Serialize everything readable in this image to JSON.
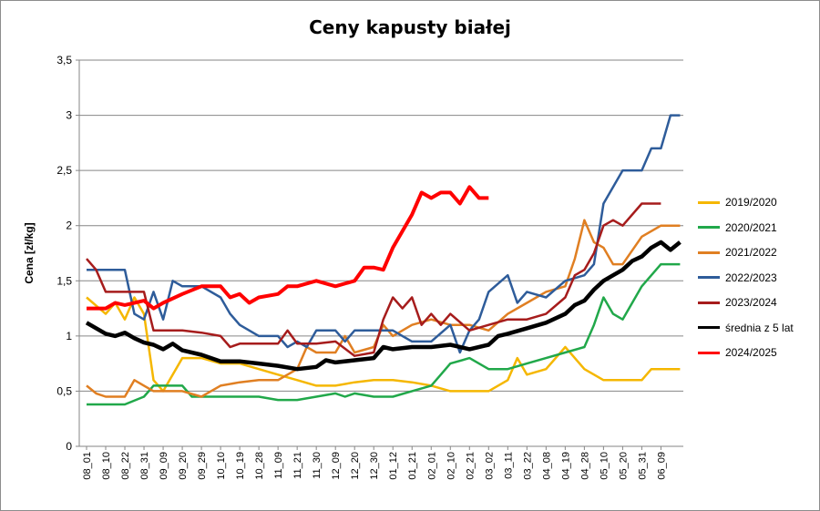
{
  "chart_data": {
    "type": "line",
    "title": "Ceny kapusty białej",
    "xlabel": "",
    "ylabel": "Cena [zł/kg]",
    "ylim": [
      0,
      3.5
    ],
    "yticks": [
      "0",
      "0,5",
      "1",
      "1,5",
      "2",
      "2,5",
      "3",
      "3,5"
    ],
    "grid": true,
    "legend_position": "right",
    "categories": [
      "08_01",
      "08_10",
      "08_22",
      "08_31",
      "09_09",
      "09_20",
      "09_29",
      "10_10",
      "10_19",
      "10_28",
      "11_09",
      "11_21",
      "11_30",
      "12_09",
      "12_20",
      "12_30",
      "01_12",
      "01_21",
      "02_01",
      "02_10",
      "02_21",
      "03_02",
      "03_11",
      "03_22",
      "04_08",
      "04_19",
      "04_28",
      "05_10",
      "05_20",
      "05_31",
      "06_09"
    ],
    "series": [
      {
        "name": "2019/2020",
        "color": "#F5B700",
        "points": [
          [
            0,
            1.35
          ],
          [
            1,
            1.2
          ],
          [
            1.5,
            1.3
          ],
          [
            2,
            1.15
          ],
          [
            2.5,
            1.35
          ],
          [
            3,
            1.2
          ],
          [
            3.5,
            0.6
          ],
          [
            4,
            0.5
          ],
          [
            5,
            0.8
          ],
          [
            6,
            0.8
          ],
          [
            7,
            0.75
          ],
          [
            8,
            0.75
          ],
          [
            9,
            0.7
          ],
          [
            10,
            0.65
          ],
          [
            11,
            0.6
          ],
          [
            12,
            0.55
          ],
          [
            13,
            0.55
          ],
          [
            14,
            0.58
          ],
          [
            15,
            0.6
          ],
          [
            16,
            0.6
          ],
          [
            17,
            0.58
          ],
          [
            18,
            0.55
          ],
          [
            19,
            0.5
          ],
          [
            20,
            0.5
          ],
          [
            21,
            0.5
          ],
          [
            22,
            0.6
          ],
          [
            22.5,
            0.8
          ],
          [
            23,
            0.65
          ],
          [
            24,
            0.7
          ],
          [
            25,
            0.9
          ],
          [
            25.5,
            0.8
          ],
          [
            26,
            0.7
          ],
          [
            27,
            0.6
          ],
          [
            28,
            0.6
          ],
          [
            29,
            0.6
          ],
          [
            29.5,
            0.7
          ],
          [
            31,
            0.7
          ]
        ]
      },
      {
        "name": "2020/2021",
        "color": "#21A84A",
        "points": [
          [
            0,
            0.38
          ],
          [
            1,
            0.38
          ],
          [
            2,
            0.38
          ],
          [
            3,
            0.45
          ],
          [
            3.5,
            0.55
          ],
          [
            4,
            0.55
          ],
          [
            5,
            0.55
          ],
          [
            5.5,
            0.45
          ],
          [
            6,
            0.45
          ],
          [
            7,
            0.45
          ],
          [
            8,
            0.45
          ],
          [
            9,
            0.45
          ],
          [
            10,
            0.42
          ],
          [
            11,
            0.42
          ],
          [
            12,
            0.45
          ],
          [
            13,
            0.48
          ],
          [
            13.5,
            0.45
          ],
          [
            14,
            0.48
          ],
          [
            15,
            0.45
          ],
          [
            16,
            0.45
          ],
          [
            17,
            0.5
          ],
          [
            18,
            0.55
          ],
          [
            18.5,
            0.65
          ],
          [
            19,
            0.75
          ],
          [
            20,
            0.8
          ],
          [
            21,
            0.7
          ],
          [
            22,
            0.7
          ],
          [
            23,
            0.75
          ],
          [
            24,
            0.8
          ],
          [
            25,
            0.85
          ],
          [
            26,
            0.9
          ],
          [
            26.5,
            1.1
          ],
          [
            27,
            1.35
          ],
          [
            27.5,
            1.2
          ],
          [
            28,
            1.15
          ],
          [
            29,
            1.45
          ],
          [
            30,
            1.65
          ],
          [
            31,
            1.65
          ]
        ]
      },
      {
        "name": "2021/2022",
        "color": "#E07F22",
        "points": [
          [
            0,
            0.55
          ],
          [
            0.5,
            0.48
          ],
          [
            1,
            0.45
          ],
          [
            2,
            0.45
          ],
          [
            2.5,
            0.6
          ],
          [
            3,
            0.55
          ],
          [
            3.5,
            0.5
          ],
          [
            4,
            0.5
          ],
          [
            5,
            0.5
          ],
          [
            6,
            0.45
          ],
          [
            6.5,
            0.5
          ],
          [
            7,
            0.55
          ],
          [
            8,
            0.58
          ],
          [
            9,
            0.6
          ],
          [
            10,
            0.6
          ],
          [
            11,
            0.7
          ],
          [
            11.5,
            0.9
          ],
          [
            12,
            0.85
          ],
          [
            13,
            0.85
          ],
          [
            13.5,
            1
          ],
          [
            14,
            0.85
          ],
          [
            15,
            0.9
          ],
          [
            15.5,
            1.1
          ],
          [
            16,
            1
          ],
          [
            17,
            1.1
          ],
          [
            18,
            1.15
          ],
          [
            19,
            1.1
          ],
          [
            20,
            1.1
          ],
          [
            21,
            1.05
          ],
          [
            22,
            1.2
          ],
          [
            23,
            1.3
          ],
          [
            24,
            1.4
          ],
          [
            25,
            1.45
          ],
          [
            25.5,
            1.7
          ],
          [
            26,
            2.05
          ],
          [
            26.5,
            1.85
          ],
          [
            27,
            1.8
          ],
          [
            27.5,
            1.65
          ],
          [
            28,
            1.65
          ],
          [
            29,
            1.9
          ],
          [
            30,
            2
          ],
          [
            31,
            2
          ]
        ]
      },
      {
        "name": "2022/2023",
        "color": "#2E5C9A",
        "points": [
          [
            0,
            1.6
          ],
          [
            1,
            1.6
          ],
          [
            2,
            1.6
          ],
          [
            2.5,
            1.2
          ],
          [
            3,
            1.15
          ],
          [
            3.5,
            1.4
          ],
          [
            4,
            1.15
          ],
          [
            4.5,
            1.5
          ],
          [
            5,
            1.45
          ],
          [
            6,
            1.45
          ],
          [
            7,
            1.35
          ],
          [
            7.5,
            1.2
          ],
          [
            8,
            1.1
          ],
          [
            9,
            1
          ],
          [
            10,
            1
          ],
          [
            10.5,
            0.9
          ],
          [
            11,
            0.95
          ],
          [
            11.5,
            0.9
          ],
          [
            12,
            1.05
          ],
          [
            13,
            1.05
          ],
          [
            13.5,
            0.95
          ],
          [
            14,
            1.05
          ],
          [
            15,
            1.05
          ],
          [
            16,
            1.05
          ],
          [
            16.5,
            1.0
          ],
          [
            17,
            0.95
          ],
          [
            18,
            0.95
          ],
          [
            19,
            1.1
          ],
          [
            19.5,
            0.85
          ],
          [
            20,
            1.05
          ],
          [
            20.5,
            1.15
          ],
          [
            21,
            1.4
          ],
          [
            22,
            1.55
          ],
          [
            22.5,
            1.3
          ],
          [
            23,
            1.4
          ],
          [
            24,
            1.35
          ],
          [
            25,
            1.5
          ],
          [
            26,
            1.55
          ],
          [
            26.5,
            1.65
          ],
          [
            27,
            2.2
          ],
          [
            28,
            2.5
          ],
          [
            29,
            2.5
          ],
          [
            29.5,
            2.7
          ],
          [
            30,
            2.7
          ],
          [
            30.5,
            3.0
          ],
          [
            31,
            3.0
          ]
        ]
      },
      {
        "name": "2023/2024",
        "color": "#A61C1C",
        "points": [
          [
            0,
            1.7
          ],
          [
            0.5,
            1.6
          ],
          [
            1,
            1.4
          ],
          [
            2,
            1.4
          ],
          [
            3,
            1.4
          ],
          [
            3.5,
            1.05
          ],
          [
            4,
            1.05
          ],
          [
            5,
            1.05
          ],
          [
            6,
            1.03
          ],
          [
            7,
            1
          ],
          [
            7.5,
            0.9
          ],
          [
            8,
            0.93
          ],
          [
            9,
            0.93
          ],
          [
            10,
            0.93
          ],
          [
            10.5,
            1.05
          ],
          [
            11,
            0.93
          ],
          [
            12,
            0.93
          ],
          [
            13,
            0.95
          ],
          [
            14,
            0.82
          ],
          [
            15,
            0.85
          ],
          [
            15.5,
            1.15
          ],
          [
            16,
            1.35
          ],
          [
            16.5,
            1.25
          ],
          [
            17,
            1.35
          ],
          [
            17.5,
            1.1
          ],
          [
            18,
            1.2
          ],
          [
            18.5,
            1.1
          ],
          [
            19,
            1.2
          ],
          [
            20,
            1.05
          ],
          [
            21,
            1.1
          ],
          [
            22,
            1.15
          ],
          [
            23,
            1.15
          ],
          [
            24,
            1.2
          ],
          [
            25,
            1.35
          ],
          [
            25.5,
            1.55
          ],
          [
            26,
            1.6
          ],
          [
            26.5,
            1.75
          ],
          [
            27,
            2
          ],
          [
            27.5,
            2.05
          ],
          [
            28,
            2
          ],
          [
            29,
            2.2
          ],
          [
            30,
            2.2
          ]
        ]
      },
      {
        "name": "średnia z 5 lat",
        "color": "#000000",
        "width": 4.5,
        "points": [
          [
            0,
            1.12
          ],
          [
            1,
            1.02
          ],
          [
            1.5,
            1
          ],
          [
            2,
            1.03
          ],
          [
            2.5,
            0.98
          ],
          [
            3,
            0.94
          ],
          [
            3.5,
            0.92
          ],
          [
            4,
            0.88
          ],
          [
            4.5,
            0.93
          ],
          [
            5,
            0.87
          ],
          [
            6,
            0.83
          ],
          [
            7,
            0.77
          ],
          [
            8,
            0.77
          ],
          [
            9,
            0.75
          ],
          [
            10,
            0.73
          ],
          [
            11,
            0.7
          ],
          [
            12,
            0.72
          ],
          [
            12.5,
            0.78
          ],
          [
            13,
            0.76
          ],
          [
            14,
            0.78
          ],
          [
            15,
            0.8
          ],
          [
            15.5,
            0.9
          ],
          [
            16,
            0.88
          ],
          [
            17,
            0.9
          ],
          [
            18,
            0.9
          ],
          [
            19,
            0.92
          ],
          [
            20,
            0.88
          ],
          [
            21,
            0.92
          ],
          [
            21.5,
            1.0
          ],
          [
            22,
            1.02
          ],
          [
            23,
            1.07
          ],
          [
            24,
            1.12
          ],
          [
            25,
            1.2
          ],
          [
            25.5,
            1.28
          ],
          [
            26,
            1.32
          ],
          [
            26.5,
            1.42
          ],
          [
            27,
            1.5
          ],
          [
            27.5,
            1.55
          ],
          [
            28,
            1.6
          ],
          [
            28.5,
            1.68
          ],
          [
            29,
            1.72
          ],
          [
            29.5,
            1.8
          ],
          [
            30,
            1.85
          ],
          [
            30.5,
            1.78
          ],
          [
            31,
            1.85
          ]
        ]
      },
      {
        "name": "2024/2025",
        "color": "#FF0000",
        "width": 4,
        "points": [
          [
            0,
            1.25
          ],
          [
            1,
            1.25
          ],
          [
            1.5,
            1.3
          ],
          [
            2,
            1.28
          ],
          [
            2.5,
            1.3
          ],
          [
            3,
            1.32
          ],
          [
            3.5,
            1.25
          ],
          [
            4,
            1.3
          ],
          [
            5,
            1.38
          ],
          [
            6,
            1.45
          ],
          [
            7,
            1.45
          ],
          [
            7.5,
            1.35
          ],
          [
            8,
            1.38
          ],
          [
            8.5,
            1.3
          ],
          [
            9,
            1.35
          ],
          [
            10,
            1.38
          ],
          [
            10.5,
            1.45
          ],
          [
            11,
            1.45
          ],
          [
            12,
            1.5
          ],
          [
            13,
            1.45
          ],
          [
            14,
            1.5
          ],
          [
            14.5,
            1.62
          ],
          [
            15,
            1.62
          ],
          [
            15.5,
            1.6
          ],
          [
            16,
            1.8
          ],
          [
            16.5,
            1.95
          ],
          [
            17,
            2.1
          ],
          [
            17.5,
            2.3
          ],
          [
            18,
            2.25
          ],
          [
            18.5,
            2.3
          ],
          [
            19,
            2.3
          ],
          [
            19.5,
            2.2
          ],
          [
            20,
            2.35
          ],
          [
            20.5,
            2.25
          ],
          [
            21,
            2.25
          ]
        ]
      }
    ]
  }
}
